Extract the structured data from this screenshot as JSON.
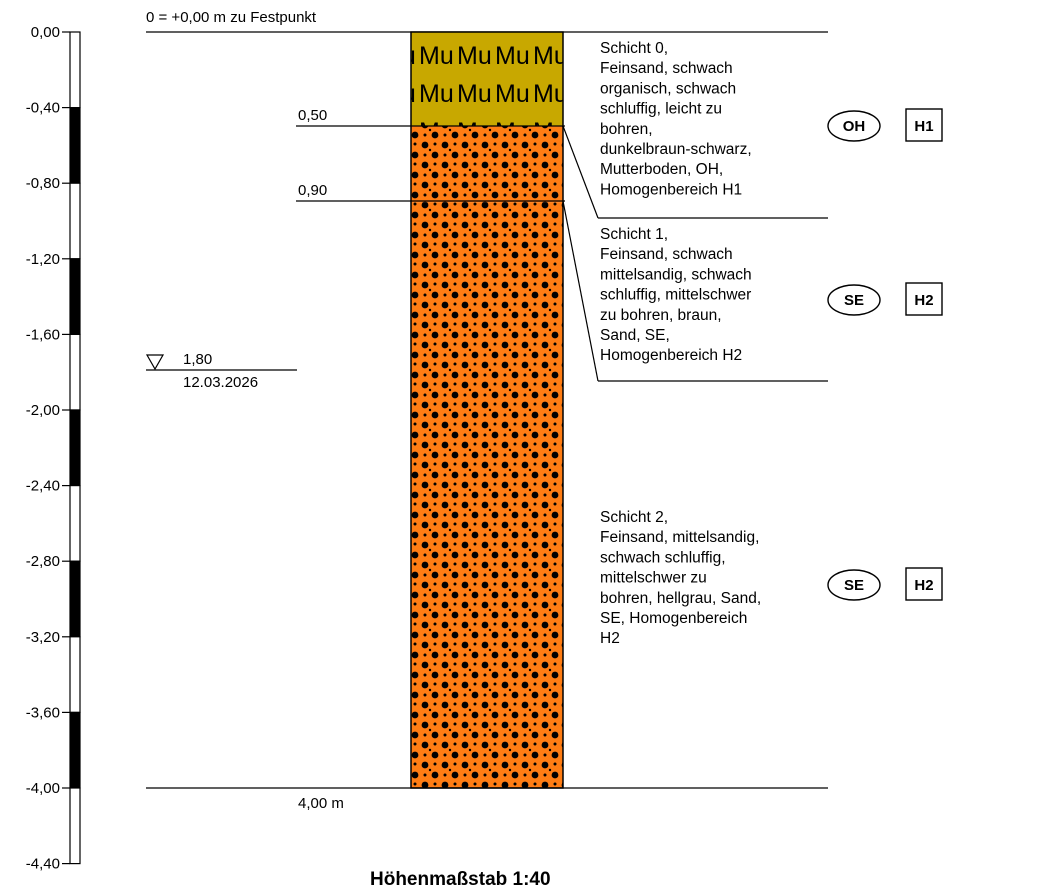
{
  "reference_note": "0 = +0,00 m zu Festpunkt",
  "scale": {
    "title": "Höhenmaßstab 1:40",
    "ticks": [
      "0,00",
      "-0,40",
      "-0,80",
      "-1,20",
      "-1,60",
      "-2,00",
      "-2,40",
      "-2,80",
      "-3,20",
      "-3,60",
      "-4,00",
      "-4,40"
    ]
  },
  "groundwater": {
    "depth": "1,80",
    "date": "12.03.2026"
  },
  "depth_markers": [
    "0,50",
    "0,90"
  ],
  "final_depth": "4,00 m",
  "layers": [
    {
      "name": "Schicht 0",
      "top_m": 0.0,
      "bottom_m": 0.5,
      "color": "#c8a800",
      "pattern": "Mu",
      "description_lines": [
        "Schicht 0,",
        "Feinsand, schwach",
        "organisch, schwach",
        "schluffig, leicht zu",
        "bohren,",
        "dunkelbraun-schwarz,",
        "Mutterboden, OH,",
        "Homogenbereich H1"
      ],
      "soil_group": "OH",
      "homogeneous_area": "H1"
    },
    {
      "name": "Schicht 1",
      "top_m": 0.5,
      "bottom_m": 0.9,
      "color": "#ff7d14",
      "pattern": "dots",
      "description_lines": [
        "Schicht 1,",
        "Feinsand, schwach",
        "mittelsandig, schwach",
        "schluffig, mittelschwer",
        "zu bohren, braun,",
        "Sand, SE,",
        "Homogenbereich H2"
      ],
      "soil_group": "SE",
      "homogeneous_area": "H2"
    },
    {
      "name": "Schicht 2",
      "top_m": 0.9,
      "bottom_m": 4.0,
      "color": "#ff7d14",
      "pattern": "dots",
      "description_lines": [
        "Schicht 2,",
        "Feinsand, mittelsandig,",
        "schwach schluffig,",
        "mittelschwer zu",
        "bohren, hellgrau, Sand,",
        "SE, Homogenbereich",
        "H2"
      ],
      "soil_group": "SE",
      "homogeneous_area": "H2"
    }
  ]
}
